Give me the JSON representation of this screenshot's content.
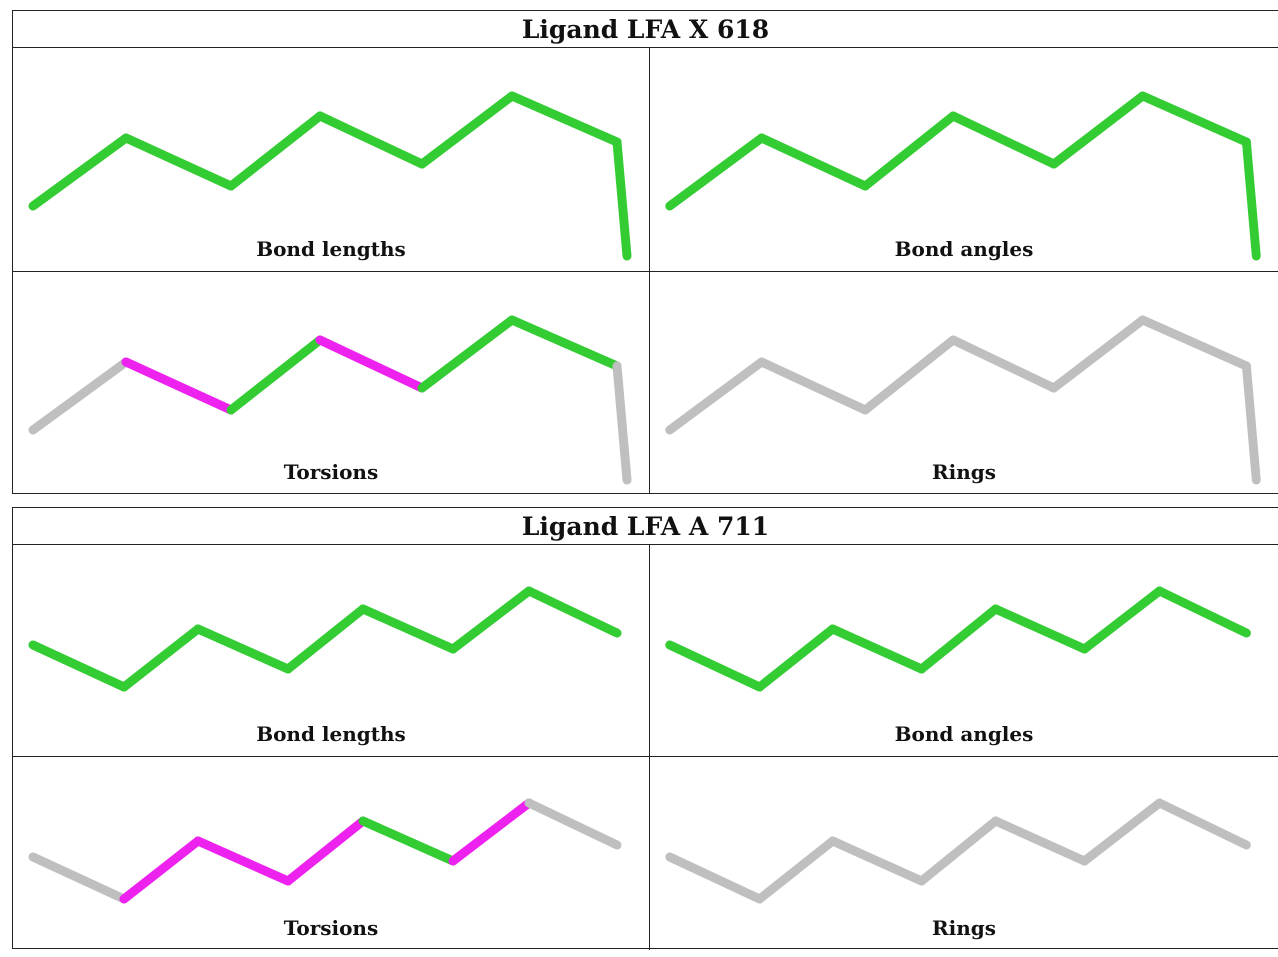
{
  "colors": {
    "ok": "#33cc33",
    "outlier": "#ee22ee",
    "na": "#bfbfbf"
  },
  "ligands": [
    {
      "title": "Ligand LFA X 618",
      "panels": [
        {
          "caption": "Bond lengths",
          "segments": [
            "ok",
            "ok",
            "ok",
            "ok",
            "ok",
            "ok",
            "ok"
          ]
        },
        {
          "caption": "Bond angles",
          "segments": [
            "ok",
            "ok",
            "ok",
            "ok",
            "ok",
            "ok",
            "ok"
          ]
        },
        {
          "caption": "Torsions",
          "segments": [
            "na",
            "outlier",
            "ok",
            "outlier",
            "ok",
            "ok",
            "na"
          ]
        },
        {
          "caption": "Rings",
          "segments": [
            "na",
            "na",
            "na",
            "na",
            "na",
            "na",
            "na"
          ]
        }
      ]
    },
    {
      "title": "Ligand LFA A 711",
      "panels": [
        {
          "caption": "Bond lengths",
          "segments": [
            "ok",
            "ok",
            "ok",
            "ok",
            "ok",
            "ok",
            "ok"
          ]
        },
        {
          "caption": "Bond angles",
          "segments": [
            "ok",
            "ok",
            "ok",
            "ok",
            "ok",
            "ok",
            "ok"
          ]
        },
        {
          "caption": "Torsions",
          "segments": [
            "na",
            "outlier",
            "outlier",
            "outlier",
            "ok",
            "outlier",
            "na"
          ]
        },
        {
          "caption": "Rings",
          "segments": [
            "na",
            "na",
            "na",
            "na",
            "na",
            "na",
            "na"
          ]
        }
      ]
    }
  ]
}
